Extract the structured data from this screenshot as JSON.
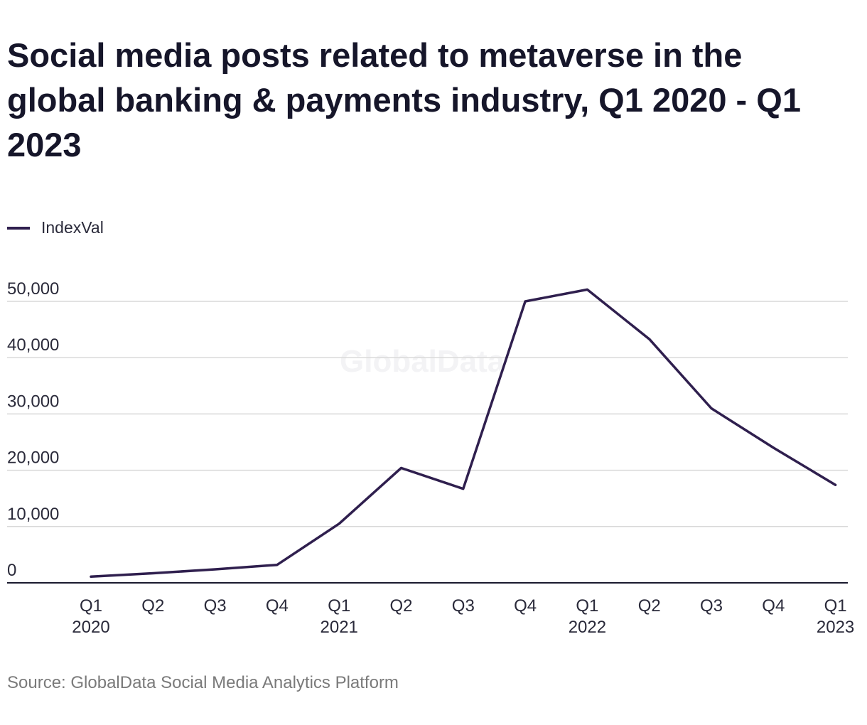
{
  "chart_data": {
    "type": "line",
    "title": "Social media posts related to metaverse in the global banking & payments industry, Q1 2020 - Q1 2023",
    "xlabel": "",
    "ylabel": "",
    "categories": [
      "Q1\n2020",
      "Q2",
      "Q3",
      "Q4",
      "Q1\n2021",
      "Q2",
      "Q3",
      "Q4",
      "Q1\n2022",
      "Q2",
      "Q3",
      "Q4",
      "Q1\n2023"
    ],
    "series": [
      {
        "name": "IndexVal",
        "values": [
          1100,
          1700,
          2400,
          3200,
          10500,
          20400,
          16700,
          50000,
          52100,
          43300,
          31000,
          24000,
          17400
        ]
      }
    ],
    "ylim": [
      0,
      50000
    ],
    "yticks": [
      0,
      10000,
      20000,
      30000,
      40000,
      50000
    ],
    "ytick_labels": [
      "0",
      "10,000",
      "20,000",
      "30,000",
      "40,000",
      "50,000"
    ],
    "grid": true,
    "legend_position": "top-left",
    "line_color": "#2f1f4e",
    "watermark": "GlobalData",
    "source": "Source: GlobalData Social Media Analytics Platform"
  }
}
